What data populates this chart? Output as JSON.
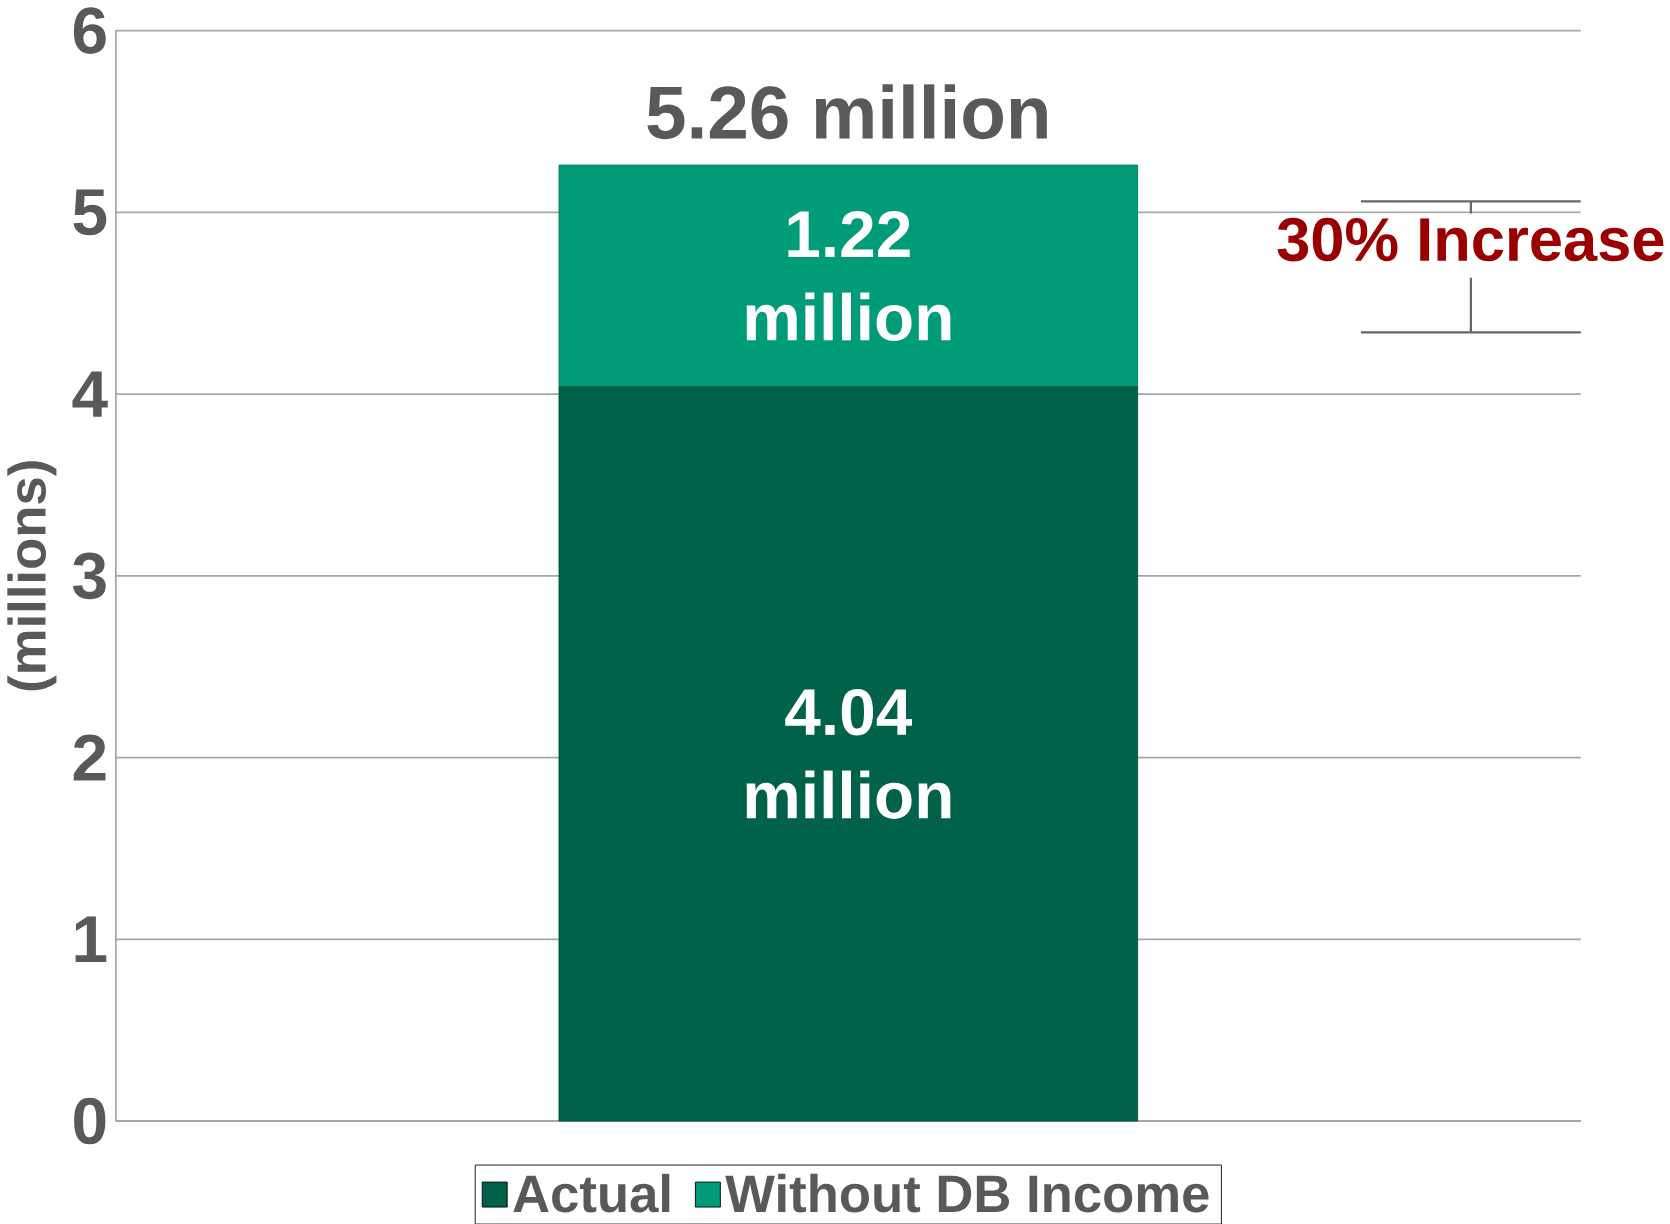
{
  "chart_data": {
    "type": "bar",
    "stacked": true,
    "categories": [
      null
    ],
    "ylabel": "(millions)",
    "ylim": [
      0,
      6
    ],
    "yticks": [
      0,
      1,
      2,
      3,
      4,
      5,
      6
    ],
    "grid": "y",
    "legend": "bottom",
    "series": [
      {
        "name": "Actual",
        "color": "#006249",
        "values": [
          4.04
        ],
        "value_labels": [
          "4.04 million"
        ]
      },
      {
        "name": "Without DB Income",
        "color": "#009b77",
        "values": [
          1.22
        ],
        "value_labels": [
          "1.22 million"
        ]
      }
    ],
    "totals": [
      "5.26 million"
    ],
    "annotations": [
      "30% Increase"
    ]
  }
}
